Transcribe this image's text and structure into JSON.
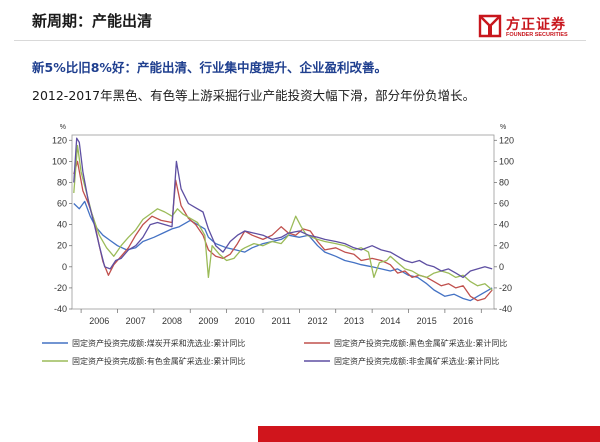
{
  "slide": {
    "title": "新周期：产能出清",
    "headline": "新5%比旧8%好：产能出清、行业集中度提升、企业盈利改善。",
    "subline": "2012-2017年黑色、有色等上游采掘行业产能投资大幅下滑，部分年份负增长。"
  },
  "logo": {
    "cn": "方正证券",
    "en": "FOUNDER SECURITIES",
    "icon": "founder-logo-icon",
    "color": "#c8161d"
  },
  "footer": {
    "color": "#d0151c"
  },
  "chart_data": {
    "type": "line",
    "title": "",
    "xlabel": "",
    "ylabel_left": "%",
    "ylabel_right": "%",
    "ylim": [
      -40,
      125
    ],
    "yticks": [
      -40,
      -20,
      0,
      20,
      40,
      60,
      80,
      100,
      120
    ],
    "xlim": [
      2005.25,
      2016.85
    ],
    "x_ticks": [
      2006,
      2007,
      2008,
      2009,
      2010,
      2011,
      2012,
      2013,
      2014,
      2015,
      2016
    ],
    "grid": false,
    "legend_position": "bottom",
    "series": [
      {
        "name": "固定资产投资完成额:煤炭开采和洗选业:累计同比",
        "color": "#4472c4",
        "points": [
          [
            2005.3,
            60
          ],
          [
            2005.45,
            55
          ],
          [
            2005.6,
            62
          ],
          [
            2005.75,
            48
          ],
          [
            2005.9,
            38
          ],
          [
            2006.1,
            30
          ],
          [
            2006.3,
            25
          ],
          [
            2006.5,
            20
          ],
          [
            2006.75,
            16
          ],
          [
            2007.0,
            18
          ],
          [
            2007.2,
            24
          ],
          [
            2007.5,
            28
          ],
          [
            2007.75,
            32
          ],
          [
            2008.0,
            36
          ],
          [
            2008.2,
            38
          ],
          [
            2008.5,
            44
          ],
          [
            2008.7,
            40
          ],
          [
            2008.9,
            36
          ],
          [
            2009.0,
            28
          ],
          [
            2009.2,
            22
          ],
          [
            2009.5,
            18
          ],
          [
            2009.75,
            16
          ],
          [
            2010.0,
            14
          ],
          [
            2010.2,
            18
          ],
          [
            2010.5,
            22
          ],
          [
            2010.75,
            24
          ],
          [
            2011.0,
            26
          ],
          [
            2011.2,
            30
          ],
          [
            2011.5,
            28
          ],
          [
            2011.75,
            30
          ],
          [
            2012.0,
            20
          ],
          [
            2012.2,
            14
          ],
          [
            2012.5,
            10
          ],
          [
            2012.75,
            6
          ],
          [
            2013.0,
            4
          ],
          [
            2013.2,
            2
          ],
          [
            2013.5,
            0
          ],
          [
            2013.75,
            -2
          ],
          [
            2014.0,
            -4
          ],
          [
            2014.2,
            -2
          ],
          [
            2014.5,
            -8
          ],
          [
            2014.75,
            -10
          ],
          [
            2015.0,
            -16
          ],
          [
            2015.2,
            -22
          ],
          [
            2015.5,
            -28
          ],
          [
            2015.75,
            -26
          ],
          [
            2016.0,
            -30
          ],
          [
            2016.2,
            -32
          ],
          [
            2016.5,
            -26
          ],
          [
            2016.8,
            -20
          ]
        ]
      },
      {
        "name": "固定资产投资完成额:黑色金属矿采选业:累计同比",
        "color": "#c0504d",
        "points": [
          [
            2005.3,
            88
          ],
          [
            2005.4,
            100
          ],
          [
            2005.55,
            72
          ],
          [
            2005.7,
            60
          ],
          [
            2005.85,
            45
          ],
          [
            2006.0,
            20
          ],
          [
            2006.1,
            5
          ],
          [
            2006.25,
            -8
          ],
          [
            2006.4,
            2
          ],
          [
            2006.6,
            10
          ],
          [
            2006.8,
            18
          ],
          [
            2007.0,
            30
          ],
          [
            2007.2,
            40
          ],
          [
            2007.45,
            48
          ],
          [
            2007.7,
            44
          ],
          [
            2008.0,
            42
          ],
          [
            2008.1,
            82
          ],
          [
            2008.25,
            58
          ],
          [
            2008.45,
            46
          ],
          [
            2008.65,
            40
          ],
          [
            2008.85,
            30
          ],
          [
            2009.0,
            16
          ],
          [
            2009.2,
            10
          ],
          [
            2009.4,
            8
          ],
          [
            2009.6,
            12
          ],
          [
            2009.8,
            22
          ],
          [
            2010.0,
            34
          ],
          [
            2010.2,
            30
          ],
          [
            2010.5,
            26
          ],
          [
            2010.75,
            30
          ],
          [
            2011.0,
            38
          ],
          [
            2011.2,
            32
          ],
          [
            2011.4,
            30
          ],
          [
            2011.6,
            36
          ],
          [
            2011.8,
            34
          ],
          [
            2012.0,
            24
          ],
          [
            2012.2,
            16
          ],
          [
            2012.5,
            18
          ],
          [
            2012.75,
            14
          ],
          [
            2013.0,
            12
          ],
          [
            2013.2,
            6
          ],
          [
            2013.5,
            8
          ],
          [
            2013.75,
            6
          ],
          [
            2014.0,
            2
          ],
          [
            2014.2,
            -6
          ],
          [
            2014.4,
            -4
          ],
          [
            2014.6,
            -10
          ],
          [
            2014.8,
            -8
          ],
          [
            2015.0,
            -10
          ],
          [
            2015.2,
            -14
          ],
          [
            2015.4,
            -18
          ],
          [
            2015.6,
            -16
          ],
          [
            2015.8,
            -20
          ],
          [
            2016.0,
            -18
          ],
          [
            2016.2,
            -28
          ],
          [
            2016.4,
            -32
          ],
          [
            2016.6,
            -30
          ],
          [
            2016.8,
            -22
          ]
        ]
      },
      {
        "name": "固定资产投资完成额:有色金属矿采选业:累计同比",
        "color": "#9bbb59",
        "points": [
          [
            2005.3,
            70
          ],
          [
            2005.4,
            115
          ],
          [
            2005.5,
            90
          ],
          [
            2005.65,
            70
          ],
          [
            2005.8,
            50
          ],
          [
            2006.0,
            30
          ],
          [
            2006.2,
            18
          ],
          [
            2006.4,
            10
          ],
          [
            2006.6,
            20
          ],
          [
            2006.8,
            28
          ],
          [
            2007.0,
            35
          ],
          [
            2007.2,
            45
          ],
          [
            2007.4,
            50
          ],
          [
            2007.6,
            55
          ],
          [
            2007.8,
            52
          ],
          [
            2008.0,
            48
          ],
          [
            2008.15,
            55
          ],
          [
            2008.3,
            50
          ],
          [
            2008.5,
            46
          ],
          [
            2008.7,
            42
          ],
          [
            2008.9,
            30
          ],
          [
            2009.0,
            -10
          ],
          [
            2009.1,
            20
          ],
          [
            2009.3,
            12
          ],
          [
            2009.5,
            6
          ],
          [
            2009.7,
            8
          ],
          [
            2009.9,
            16
          ],
          [
            2010.0,
            18
          ],
          [
            2010.25,
            22
          ],
          [
            2010.5,
            20
          ],
          [
            2010.75,
            24
          ],
          [
            2011.0,
            22
          ],
          [
            2011.2,
            30
          ],
          [
            2011.4,
            48
          ],
          [
            2011.55,
            38
          ],
          [
            2011.7,
            30
          ],
          [
            2011.85,
            28
          ],
          [
            2012.0,
            26
          ],
          [
            2012.2,
            24
          ],
          [
            2012.5,
            22
          ],
          [
            2012.75,
            20
          ],
          [
            2013.0,
            16
          ],
          [
            2013.2,
            18
          ],
          [
            2013.4,
            14
          ],
          [
            2013.55,
            -10
          ],
          [
            2013.7,
            4
          ],
          [
            2013.9,
            6
          ],
          [
            2014.0,
            10
          ],
          [
            2014.2,
            4
          ],
          [
            2014.4,
            -2
          ],
          [
            2014.6,
            -4
          ],
          [
            2014.8,
            -8
          ],
          [
            2015.0,
            -10
          ],
          [
            2015.2,
            -6
          ],
          [
            2015.4,
            -4
          ],
          [
            2015.6,
            -6
          ],
          [
            2015.8,
            -10
          ],
          [
            2016.0,
            -8
          ],
          [
            2016.2,
            -14
          ],
          [
            2016.4,
            -18
          ],
          [
            2016.6,
            -16
          ],
          [
            2016.8,
            -22
          ]
        ]
      },
      {
        "name": "固定资产投资完成额:非金属矿采选业:累计同比",
        "color": "#5e4fa2",
        "points": [
          [
            2005.3,
            80
          ],
          [
            2005.38,
            122
          ],
          [
            2005.45,
            118
          ],
          [
            2005.55,
            90
          ],
          [
            2005.7,
            62
          ],
          [
            2005.85,
            42
          ],
          [
            2006.0,
            20
          ],
          [
            2006.15,
            0
          ],
          [
            2006.3,
            -2
          ],
          [
            2006.45,
            6
          ],
          [
            2006.6,
            8
          ],
          [
            2006.8,
            16
          ],
          [
            2007.0,
            20
          ],
          [
            2007.2,
            28
          ],
          [
            2007.4,
            40
          ],
          [
            2007.6,
            42
          ],
          [
            2007.8,
            40
          ],
          [
            2008.0,
            38
          ],
          [
            2008.12,
            100
          ],
          [
            2008.25,
            74
          ],
          [
            2008.45,
            60
          ],
          [
            2008.65,
            56
          ],
          [
            2008.85,
            52
          ],
          [
            2009.0,
            36
          ],
          [
            2009.2,
            20
          ],
          [
            2009.4,
            14
          ],
          [
            2009.6,
            24
          ],
          [
            2009.8,
            30
          ],
          [
            2010.0,
            34
          ],
          [
            2010.25,
            32
          ],
          [
            2010.5,
            30
          ],
          [
            2010.75,
            26
          ],
          [
            2011.0,
            28
          ],
          [
            2011.2,
            32
          ],
          [
            2011.5,
            34
          ],
          [
            2011.75,
            30
          ],
          [
            2012.0,
            28
          ],
          [
            2012.2,
            26
          ],
          [
            2012.5,
            24
          ],
          [
            2012.75,
            22
          ],
          [
            2013.0,
            18
          ],
          [
            2013.2,
            16
          ],
          [
            2013.5,
            20
          ],
          [
            2013.75,
            16
          ],
          [
            2014.0,
            14
          ],
          [
            2014.2,
            10
          ],
          [
            2014.4,
            6
          ],
          [
            2014.6,
            4
          ],
          [
            2014.8,
            6
          ],
          [
            2015.0,
            2
          ],
          [
            2015.2,
            0
          ],
          [
            2015.4,
            -4
          ],
          [
            2015.6,
            -2
          ],
          [
            2015.8,
            -6
          ],
          [
            2016.0,
            -10
          ],
          [
            2016.2,
            -4
          ],
          [
            2016.4,
            -2
          ],
          [
            2016.6,
            0
          ],
          [
            2016.8,
            -2
          ]
        ]
      }
    ]
  }
}
